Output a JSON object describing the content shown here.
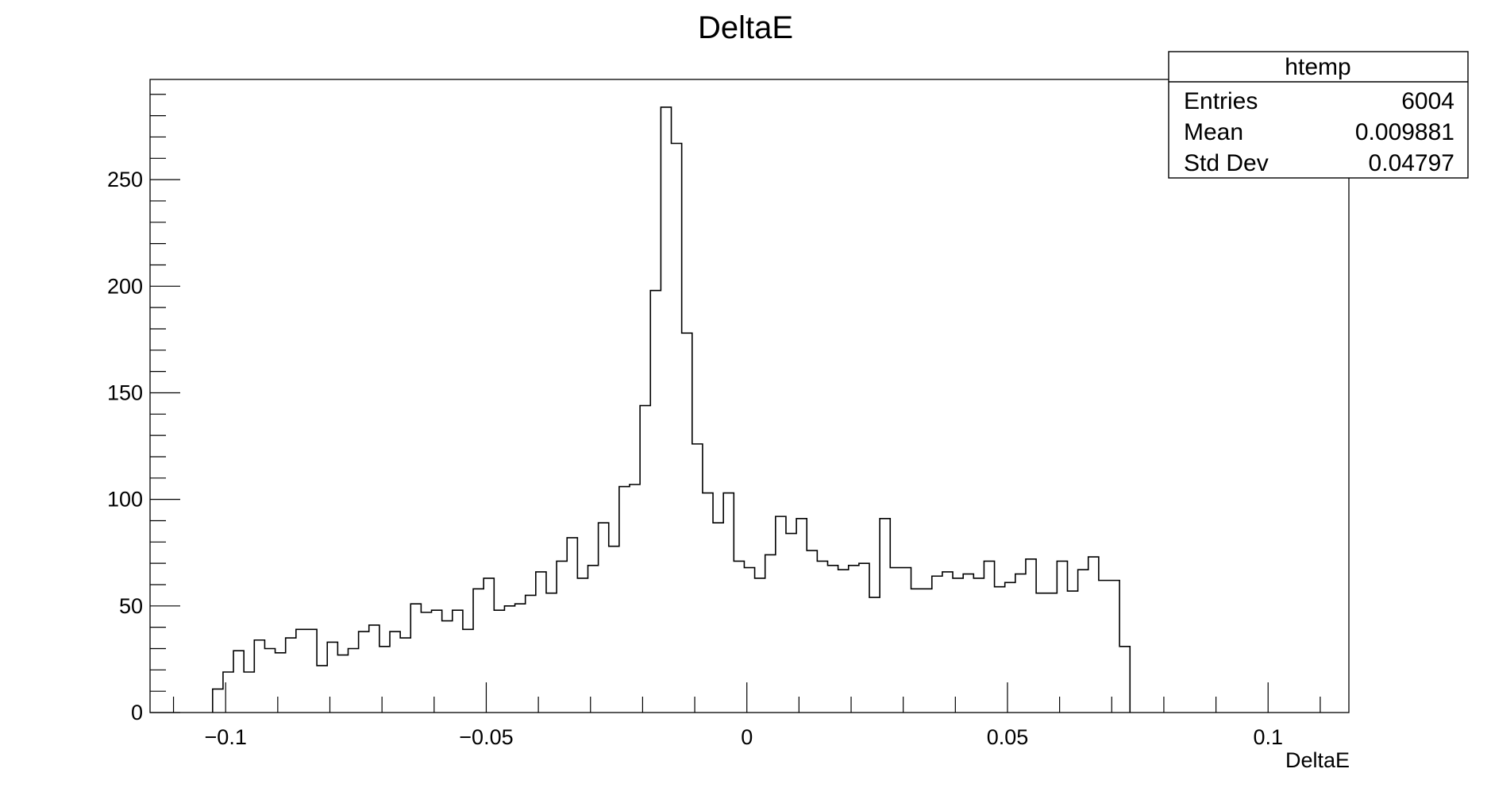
{
  "chart_data": {
    "type": "bar",
    "title": "DeltaE",
    "xlabel": "DeltaE",
    "ylabel": "",
    "xlim": [
      -0.1145,
      0.1155
    ],
    "ylim": [
      0,
      297
    ],
    "grid": false,
    "xticks": [
      {
        "v": -0.1,
        "label": "−0.1"
      },
      {
        "v": -0.05,
        "label": "−0.05"
      },
      {
        "v": 0,
        "label": "0"
      },
      {
        "v": 0.05,
        "label": "0.05"
      },
      {
        "v": 0.1,
        "label": "0.1"
      }
    ],
    "yticks": [
      {
        "v": 0,
        "label": "0"
      },
      {
        "v": 50,
        "label": "50"
      },
      {
        "v": 100,
        "label": "100"
      },
      {
        "v": 150,
        "label": "150"
      },
      {
        "v": 200,
        "label": "200"
      },
      {
        "v": 250,
        "label": "250"
      }
    ],
    "bin_start": -0.1025,
    "bin_width": 0.002,
    "values": [
      11,
      19,
      29,
      19,
      34,
      30,
      28,
      35,
      39,
      39,
      22,
      33,
      27,
      30,
      38,
      41,
      31,
      38,
      35,
      51,
      47,
      48,
      43,
      48,
      39,
      58,
      63,
      48,
      50,
      51,
      55,
      66,
      56,
      71,
      82,
      63,
      69,
      89,
      78,
      106,
      107,
      144,
      198,
      284,
      267,
      178,
      126,
      103,
      89,
      103,
      71,
      68,
      63,
      74,
      92,
      84,
      91,
      76,
      71,
      69,
      67,
      69,
      70,
      54,
      91,
      68,
      68,
      58,
      58,
      64,
      66,
      63,
      65,
      63,
      71,
      59,
      61,
      65,
      72,
      56,
      56,
      71,
      57,
      67,
      73,
      62,
      62,
      31
    ]
  },
  "stats": {
    "name": "htemp",
    "rows": [
      {
        "label": "Entries",
        "value": "6004"
      },
      {
        "label": "Mean",
        "value": "0.009881"
      },
      {
        "label": "Std Dev",
        "value": "0.04797"
      }
    ]
  }
}
